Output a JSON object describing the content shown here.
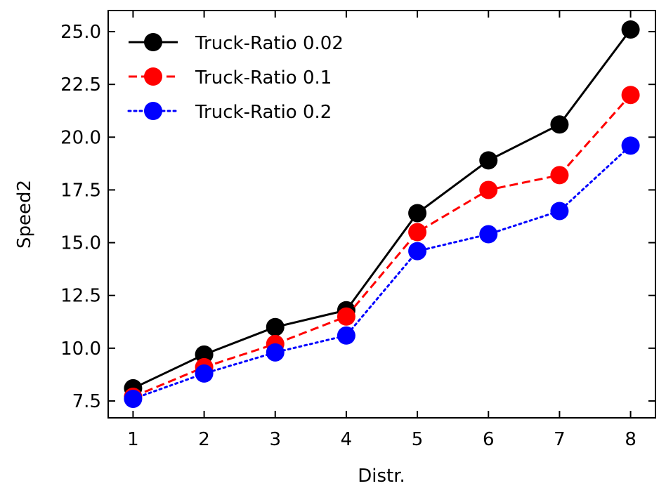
{
  "chart_data": {
    "type": "line",
    "title": "",
    "xlabel": "Distr.",
    "ylabel": "Speed2",
    "x": [
      1,
      2,
      3,
      4,
      5,
      6,
      7,
      8
    ],
    "xlim": [
      0.65,
      8.35
    ],
    "ylim": [
      6.7,
      26.0
    ],
    "xticks": [
      "1",
      "2",
      "3",
      "4",
      "5",
      "6",
      "7",
      "8"
    ],
    "yticks": [
      "7.5",
      "10.0",
      "12.5",
      "15.0",
      "17.5",
      "20.0",
      "22.5",
      "25.0"
    ],
    "ytick_values": [
      7.5,
      10.0,
      12.5,
      15.0,
      17.5,
      20.0,
      22.5,
      25.0
    ],
    "grid": false,
    "legend_position": "top-left",
    "series": [
      {
        "name": "Truck-Ratio 0.02",
        "color": "#000000",
        "line_style": "solid",
        "marker": "circle",
        "values": [
          8.1,
          9.7,
          11.0,
          11.8,
          16.4,
          18.9,
          20.6,
          25.1
        ]
      },
      {
        "name": "Truck-Ratio 0.1",
        "color": "#ff0000",
        "line_style": "dashed",
        "marker": "circle",
        "values": [
          7.7,
          9.1,
          10.2,
          11.5,
          15.5,
          17.5,
          18.2,
          22.0
        ]
      },
      {
        "name": "Truck-Ratio 0.2",
        "color": "#0000ff",
        "line_style": "dotted",
        "marker": "circle",
        "values": [
          7.6,
          8.8,
          9.8,
          10.6,
          14.6,
          15.4,
          16.5,
          19.6
        ]
      }
    ]
  }
}
